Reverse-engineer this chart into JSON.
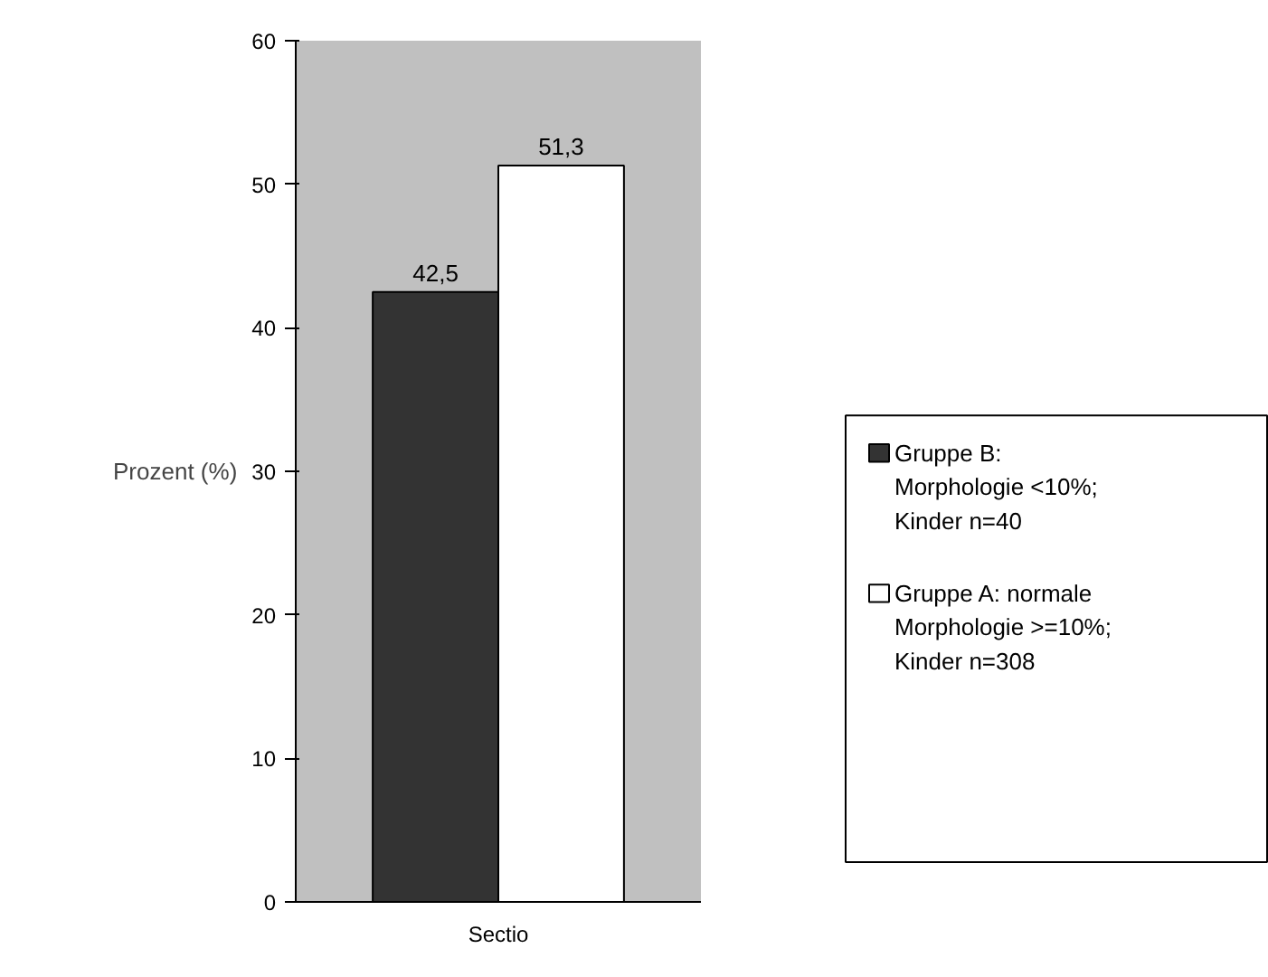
{
  "chart_data": {
    "type": "bar",
    "categories": [
      "Sectio"
    ],
    "ylabel": "Prozent (%)",
    "ylim": [
      0,
      60
    ],
    "yticks": [
      0,
      10,
      20,
      30,
      40,
      50,
      60
    ],
    "grid": false,
    "legend": "right",
    "series": [
      {
        "name": "Gruppe B: Morphologie <10%; Kinder n=40",
        "color": "#333333",
        "values": [
          42.5
        ],
        "value_labels": [
          "42,5"
        ]
      },
      {
        "name": "Gruppe A: normale Morphologie >=10%; Kinder n=308",
        "color": "#ffffff",
        "values": [
          51.3
        ],
        "value_labels": [
          "51,3"
        ]
      }
    ]
  }
}
